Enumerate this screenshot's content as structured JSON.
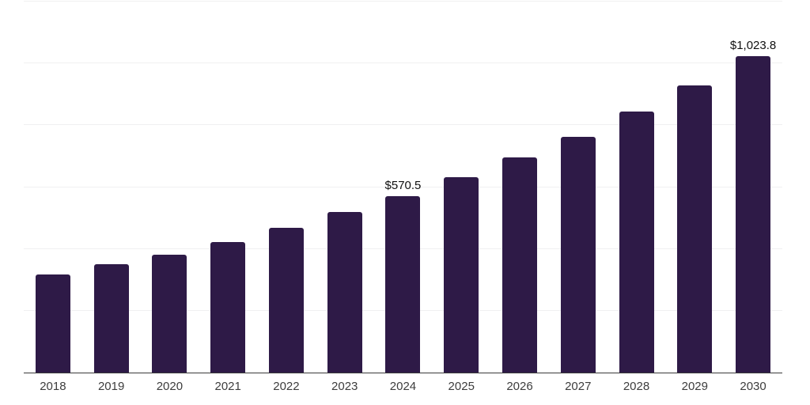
{
  "chart_data": {
    "type": "bar",
    "title": "",
    "xlabel": "",
    "ylabel": "",
    "categories": [
      "2018",
      "2019",
      "2020",
      "2021",
      "2022",
      "2023",
      "2024",
      "2025",
      "2026",
      "2027",
      "2028",
      "2029",
      "2030"
    ],
    "values": [
      318.0,
      350.5,
      380.0,
      422.0,
      468.0,
      519.5,
      570.5,
      631.5,
      696.0,
      762.5,
      844.5,
      929.0,
      1023.8
    ],
    "value_labels": [
      "",
      "",
      "",
      "",
      "",
      "",
      "$570.5",
      "",
      "",
      "",
      "",
      "",
      "$1,023.8"
    ],
    "ylim": [
      0,
      1200
    ],
    "grid_values": [
      200,
      400,
      600,
      800,
      1000,
      1200
    ],
    "y_tick_labels_visible": false,
    "legend": "none",
    "colors": {
      "bar": "#2e1a47",
      "gridline": "#f0f0f1",
      "axis_line": "#3a3a3a",
      "x_tick_label": "#3d3d3d",
      "value_label": "#111111",
      "background": "#ffffff"
    }
  }
}
